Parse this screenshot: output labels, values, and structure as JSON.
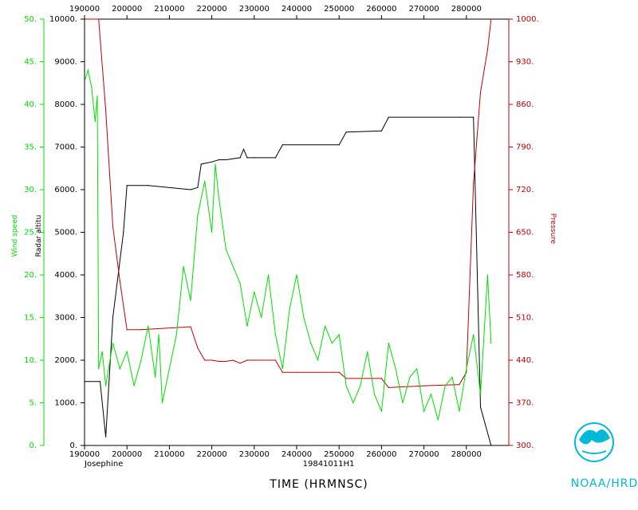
{
  "chart_data": {
    "type": "line",
    "storm_name": "Josephine",
    "flight_id": "19841011H1",
    "xlabel": "TIME (HRMNSC)",
    "logo_text": "NOAA/HRD",
    "x_ticks": [
      "190000",
      "200000",
      "210000",
      "220000",
      "230000",
      "240000",
      "250000",
      "260000",
      "270000",
      "280000"
    ],
    "xlim": [
      "19:00:00",
      "28:60:00"
    ],
    "axes": {
      "wind": {
        "label": "Wind speed",
        "color": "#00e000",
        "ylim": [
          0,
          50
        ],
        "ticks": [
          "0.",
          "5.",
          "10.",
          "15.",
          "20.",
          "25.",
          "30.",
          "35.",
          "40.",
          "45.",
          "50."
        ]
      },
      "altitude": {
        "label": "Radar altitu",
        "color": "#000000",
        "ylim": [
          0,
          10000
        ],
        "ticks": [
          "0.",
          "1000.",
          "2000.",
          "3000.",
          "4000.",
          "5000.",
          "6000.",
          "7000.",
          "8000.",
          "9000.",
          "10000."
        ]
      },
      "pressure": {
        "label": "Pressure",
        "color": "#c00000",
        "ylim": [
          300,
          1000
        ],
        "ticks": [
          "300.",
          "370.",
          "440.",
          "510.",
          "580.",
          "650.",
          "720.",
          "790.",
          "860.",
          "930.",
          "1000."
        ]
      }
    },
    "series": [
      {
        "name": "Radar altitu",
        "color": "#000000",
        "x": [
          "19:00:00",
          "19:22:00",
          "19:30:00",
          "19:40:00",
          "19:55:00",
          "20:00:00",
          "20:30:00",
          "21:30:00",
          "21:40:00",
          "21:45:00",
          "22:00:00",
          "22:10:00",
          "22:20:00",
          "22:40:00",
          "22:45:00",
          "22:50:00",
          "23:00:00",
          "23:30:00",
          "23:40:00",
          "25:00:00",
          "25:10:00",
          "26:00:00",
          "26:10:00",
          "27:50:00",
          "28:10:00",
          "28:20:00",
          "28:35:00"
        ],
        "y": [
          1500,
          1500,
          200,
          3000,
          5000,
          6100,
          6100,
          6000,
          6050,
          6600,
          6650,
          6700,
          6700,
          6750,
          6950,
          6750,
          6750,
          6750,
          7050,
          7050,
          7350,
          7380,
          7700,
          7700,
          7700,
          900,
          0
        ]
      },
      {
        "name": "Pressure",
        "color": "#c00000",
        "x": [
          "19:00:00",
          "19:20:00",
          "19:30:00",
          "19:40:00",
          "19:50:00",
          "20:00:00",
          "20:20:00",
          "21:30:00",
          "21:40:00",
          "21:50:00",
          "22:00:00",
          "22:10:00",
          "22:20:00",
          "22:30:00",
          "22:40:00",
          "22:50:00",
          "23:00:00",
          "23:30:00",
          "23:40:00",
          "24:00:00",
          "25:00:00",
          "25:10:00",
          "26:00:00",
          "26:10:00",
          "27:00:00",
          "27:50:00",
          "28:00:00",
          "28:10:00",
          "28:20:00",
          "28:30:00",
          "28:35:00"
        ],
        "y": [
          1000,
          1000,
          850,
          660,
          570,
          490,
          490,
          495,
          460,
          440,
          440,
          438,
          438,
          440,
          435,
          440,
          440,
          440,
          420,
          420,
          420,
          410,
          410,
          395,
          398,
          400,
          420,
          730,
          880,
          950,
          1000
        ]
      },
      {
        "name": "Wind speed",
        "color": "#00e000",
        "x": [
          "19:00:00",
          "19:05:00",
          "19:10:00",
          "19:15:00",
          "19:18:00",
          "19:20:00",
          "19:25:00",
          "19:30:00",
          "19:40:00",
          "19:50:00",
          "20:00:00",
          "20:10:00",
          "20:20:00",
          "20:30:00",
          "20:40:00",
          "20:45:00",
          "20:50:00",
          "21:00:00",
          "21:10:00",
          "21:20:00",
          "21:30:00",
          "21:40:00",
          "21:50:00",
          "22:00:00",
          "22:05:00",
          "22:10:00",
          "22:15:00",
          "22:20:00",
          "22:30:00",
          "22:40:00",
          "22:50:00",
          "23:00:00",
          "23:10:00",
          "23:20:00",
          "23:30:00",
          "23:40:00",
          "23:50:00",
          "24:00:00",
          "24:10:00",
          "24:20:00",
          "24:30:00",
          "24:40:00",
          "24:50:00",
          "25:00:00",
          "25:10:00",
          "25:20:00",
          "25:30:00",
          "25:40:00",
          "25:50:00",
          "26:00:00",
          "26:10:00",
          "26:20:00",
          "26:30:00",
          "26:40:00",
          "26:50:00",
          "27:00:00",
          "27:10:00",
          "27:20:00",
          "27:30:00",
          "27:40:00",
          "27:50:00",
          "28:00:00",
          "28:10:00",
          "28:20:00",
          "28:30:00",
          "28:35:00"
        ],
        "y": [
          43,
          44,
          42,
          38,
          41,
          9,
          11,
          7,
          12,
          9,
          11,
          7,
          10,
          14,
          8,
          13,
          5,
          9,
          13,
          21,
          17,
          27,
          31,
          25,
          33,
          29,
          26,
          23,
          21,
          19,
          14,
          18,
          15,
          20,
          13,
          9,
          16,
          20,
          15,
          12,
          10,
          14,
          12,
          13,
          7,
          5,
          7,
          11,
          6,
          4,
          12,
          9,
          5,
          8,
          9,
          4,
          6,
          3,
          7,
          8,
          4,
          9,
          13,
          6,
          20,
          12
        ]
      }
    ]
  }
}
